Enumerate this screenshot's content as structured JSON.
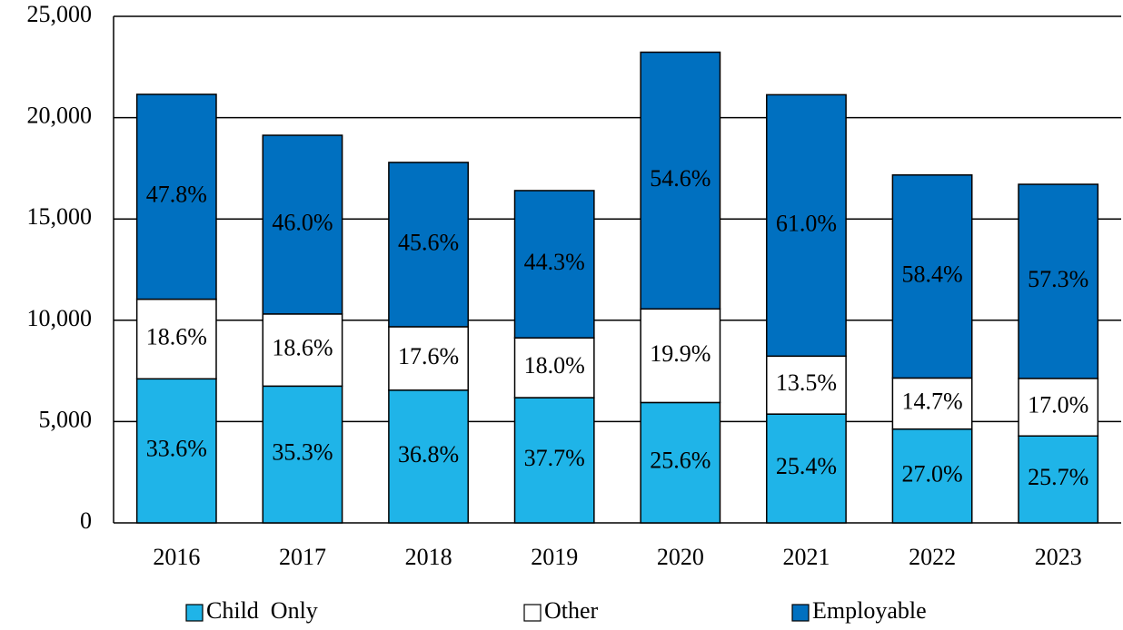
{
  "chart_data": {
    "type": "stacked_bar",
    "categories": [
      "2016",
      "2017",
      "2018",
      "2019",
      "2020",
      "2021",
      "2022",
      "2023"
    ],
    "series": [
      {
        "name": "Child  Only",
        "color": "#1fb4e8",
        "values": [
          7110,
          6750,
          6550,
          6180,
          5940,
          5370,
          4630,
          4290
        ],
        "value_labels": [
          "33.6%",
          "35.3%",
          "36.8%",
          "37.7%",
          "25.6%",
          "25.4%",
          "27.0%",
          "25.7%"
        ]
      },
      {
        "name": "Other",
        "color": "#ffffff",
        "values": [
          3930,
          3560,
          3130,
          2950,
          4620,
          2860,
          2520,
          2840
        ],
        "value_labels": [
          "18.6%",
          "18.6%",
          "17.6%",
          "18.0%",
          "19.9%",
          "13.5%",
          "14.7%",
          "17.0%"
        ]
      },
      {
        "name": "Employable",
        "color": "#0070c0",
        "values": [
          10110,
          8820,
          8110,
          7270,
          12670,
          12900,
          10020,
          9580
        ],
        "value_labels": [
          "47.8%",
          "46.0%",
          "45.6%",
          "44.3%",
          "54.6%",
          "61.0%",
          "58.4%",
          "57.3%"
        ]
      }
    ],
    "ylim": [
      0,
      25000
    ],
    "yticks": [
      0,
      {
        "value": 5000,
        "label": "5,000"
      },
      {
        "value": 10000,
        "label": "10,000"
      },
      {
        "value": 15000,
        "label": "15,000"
      },
      {
        "value": 20000,
        "label": "20,000"
      },
      {
        "value": 25000,
        "label": "25,000"
      }
    ],
    "grid": true,
    "legend": "bottom"
  }
}
